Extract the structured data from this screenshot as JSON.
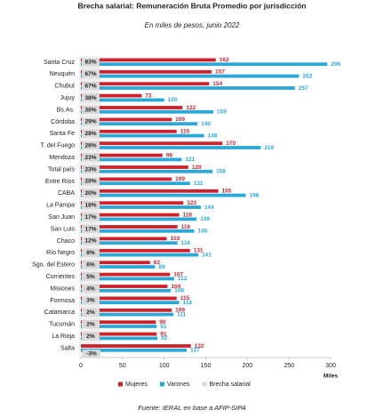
{
  "chart_data": {
    "type": "bar",
    "orientation": "horizontal",
    "title": "Brecha salarial: Remuneración Bruta Promedio por jurisdicción",
    "subtitle": "En miles de pesos, junio 2022",
    "source": "Fuente: IERAL en base a AFIP-SIPA",
    "xlabel": "Miles",
    "categories": [
      "Santa Cruz",
      "Neuquén",
      "Chubut",
      "Jujuy",
      "Bs.As.",
      "Córdoba",
      "Santa Fe",
      "T. del Fuego",
      "Mendoza",
      "Total país",
      "Entre Ríos",
      "CABA",
      "La Pampa",
      "San Juan",
      "San Luis",
      "Chaco",
      "Río Negro",
      "Sgo. del Estero",
      "Corrientes",
      "Misiones",
      "Formosa",
      "Catamarca",
      "Tucumán",
      "La Rioja",
      "Salta"
    ],
    "series": [
      {
        "name": "Mujeres",
        "color": "#d0202a",
        "values": [
          162,
          157,
          154,
          73,
          122,
          109,
          115,
          170,
          98,
          129,
          109,
          165,
          123,
          118,
          116,
          103,
          131,
          83,
          107,
          104,
          115,
          109,
          90,
          91,
          132
        ]
      },
      {
        "name": "Varones",
        "color": "#2aa8d8",
        "values": [
          296,
          262,
          257,
          100,
          159,
          140,
          148,
          216,
          121,
          158,
          131,
          198,
          144,
          139,
          136,
          116,
          141,
          89,
          112,
          108,
          118,
          111,
          91,
          92,
          127
        ]
      },
      {
        "name": "Brecha salarial",
        "color": "#d9d9d9",
        "values": [
          83,
          67,
          67,
          38,
          30,
          29,
          28,
          28,
          23,
          23,
          20,
          20,
          18,
          17,
          17,
          12,
          8,
          6,
          5,
          4,
          3,
          2,
          2,
          2,
          -3
        ],
        "value_labels": [
          "83%",
          "67%",
          "67%",
          "38%",
          "30%",
          "29%",
          "28%",
          "28%",
          "23%",
          "23%",
          "20%",
          "20%",
          "18%",
          "17%",
          "17%",
          "12%",
          "8%",
          "6%",
          "5%",
          "4%",
          "3%",
          "2%",
          "2%",
          "2%",
          "-3%"
        ]
      }
    ],
    "xlim": [
      0,
      300
    ],
    "xticks": [
      0,
      50,
      100,
      150,
      200,
      250,
      300
    ],
    "grid": false,
    "legend": "bottom"
  }
}
